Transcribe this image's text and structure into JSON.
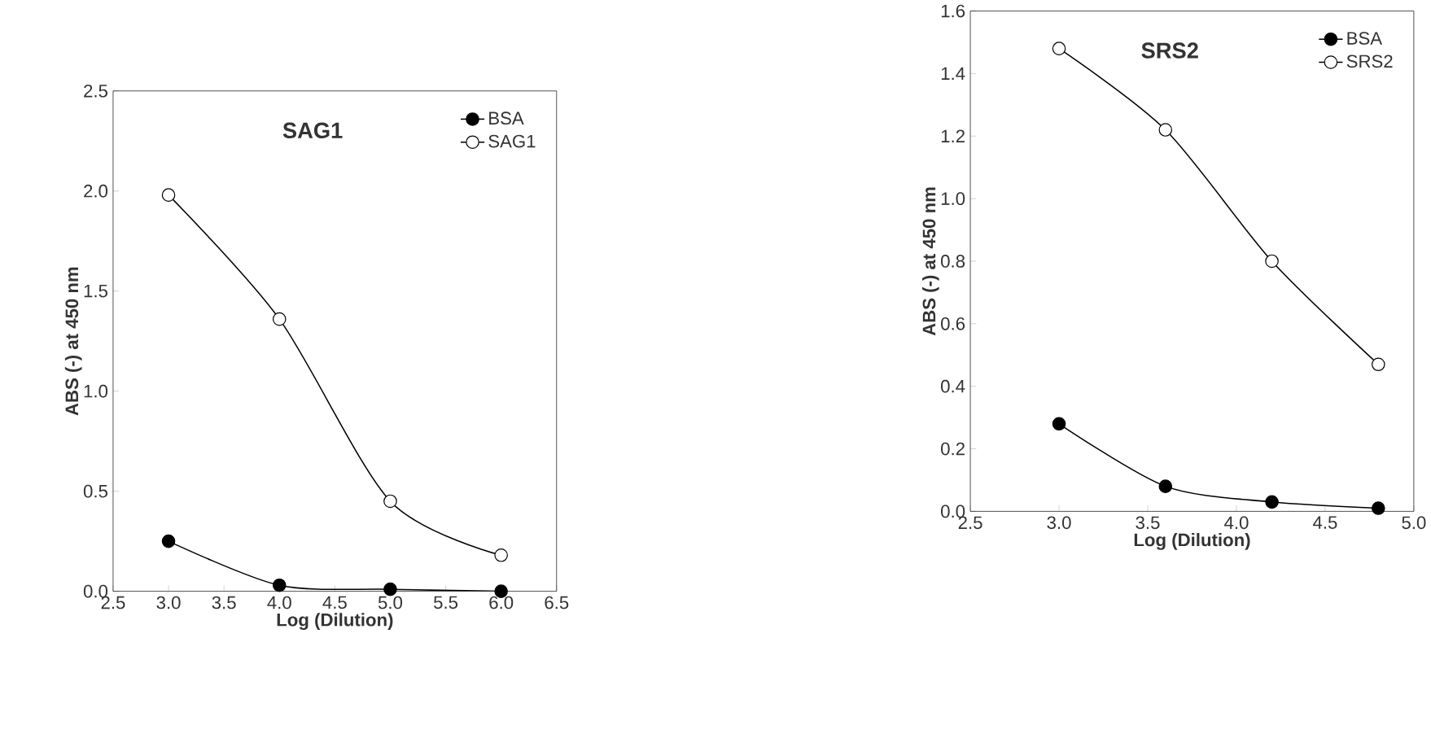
{
  "chart_data": [
    {
      "type": "line",
      "title": "SAG1",
      "xlabel": "Log (Dilution)",
      "ylabel": "ABS (-) at 450 nm",
      "x": [
        3,
        4,
        5,
        6
      ],
      "series": [
        {
          "name": "BSA",
          "color": "#000000",
          "values": [
            0.25,
            0.03,
            0.01,
            0.0
          ]
        },
        {
          "name": "SAG1",
          "color": "#ffffff",
          "values": [
            1.98,
            1.36,
            0.45,
            0.18
          ]
        }
      ],
      "xlim": [
        2.5,
        6.5
      ],
      "ylim": [
        0,
        2.5
      ],
      "xticks": [
        {
          "value": 2.5,
          "label": "2.5"
        },
        {
          "value": 3,
          "label": "3.0"
        },
        {
          "value": 3.5,
          "label": "3.5"
        },
        {
          "value": 4,
          "label": "4.0"
        },
        {
          "value": 4.5,
          "label": "4.5"
        },
        {
          "value": 5,
          "label": "5.0"
        },
        {
          "value": 5.5,
          "label": "5.5"
        },
        {
          "value": 6,
          "label": "6.0"
        },
        {
          "value": 6.5,
          "label": "6.5"
        }
      ],
      "yticks": [
        {
          "value": 0,
          "label": "0.0"
        },
        {
          "value": 0.5,
          "label": "0.5"
        },
        {
          "value": 1,
          "label": "1.0"
        },
        {
          "value": 1.5,
          "label": "1.5"
        },
        {
          "value": 2,
          "label": "2.0"
        },
        {
          "value": 2.5,
          "label": "2.5"
        }
      ],
      "legend": "top right",
      "marker": "circle",
      "grid": false
    },
    {
      "type": "line",
      "title": "SRS2",
      "xlabel": "Log (Dilution)",
      "ylabel": "ABS (-) at 450 nm",
      "x": [
        3.0,
        3.6,
        4.2,
        4.8
      ],
      "series": [
        {
          "name": "BSA",
          "color": "#000000",
          "values": [
            0.28,
            0.08,
            0.03,
            0.01
          ]
        },
        {
          "name": "SRS2",
          "color": "#ffffff",
          "values": [
            1.48,
            1.22,
            0.8,
            0.47
          ]
        }
      ],
      "xlim": [
        2.5,
        5.0
      ],
      "ylim": [
        0,
        1.6
      ],
      "xticks": [
        {
          "value": 2.5,
          "label": "2.5"
        },
        {
          "value": 3,
          "label": "3.0"
        },
        {
          "value": 3.5,
          "label": "3.5"
        },
        {
          "value": 4,
          "label": "4.0"
        },
        {
          "value": 4.5,
          "label": "4.5"
        },
        {
          "value": 5,
          "label": "5.0"
        }
      ],
      "yticks": [
        {
          "value": 0,
          "label": "0.0"
        },
        {
          "value": 0.2,
          "label": "0.2"
        },
        {
          "value": 0.4,
          "label": "0.4"
        },
        {
          "value": 0.6,
          "label": "0.6"
        },
        {
          "value": 0.8,
          "label": "0.8"
        },
        {
          "value": 1.0,
          "label": "1.0"
        },
        {
          "value": 1.2,
          "label": "1.2"
        },
        {
          "value": 1.4,
          "label": "1.4"
        },
        {
          "value": 1.6,
          "label": "1.6"
        }
      ],
      "legend": "top right",
      "marker": "circle",
      "grid": false
    }
  ]
}
